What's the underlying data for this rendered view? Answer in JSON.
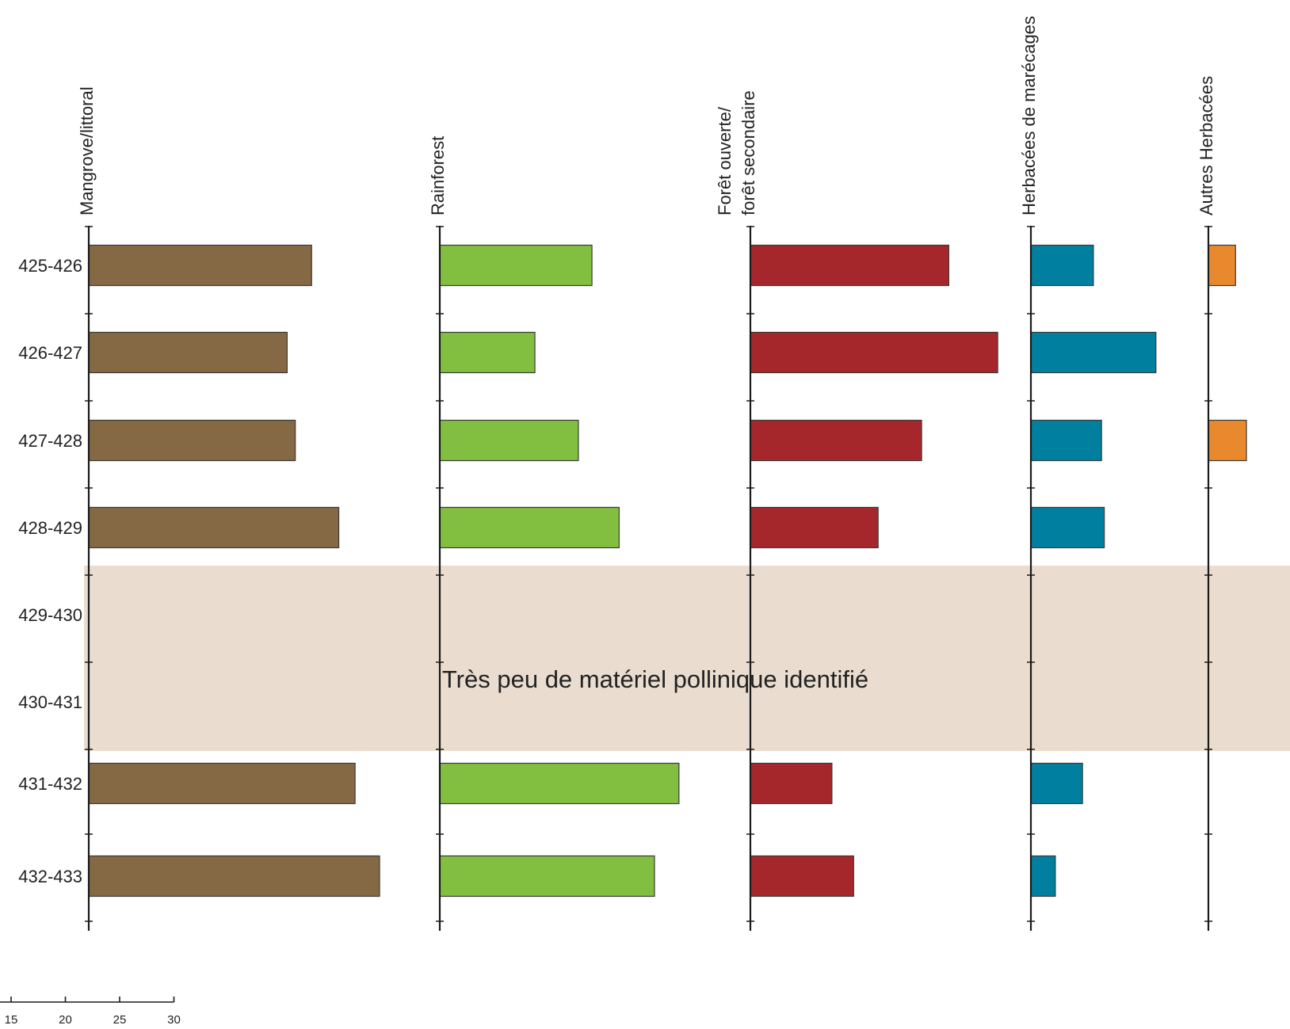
{
  "chart_data": {
    "type": "bar",
    "orientation": "horizontal",
    "categories": [
      "425-426",
      "426-427",
      "427-428",
      "428-429",
      "429-430",
      "430-431",
      "431-432",
      "432-433"
    ],
    "series": [
      {
        "name": "Mangrove/littoral",
        "color": "#856944",
        "values": [
          41,
          36.5,
          38,
          46,
          null,
          null,
          49,
          53.5
        ]
      },
      {
        "name": "Rainforest",
        "color": "#82be40",
        "values": [
          28,
          17.5,
          25.5,
          33,
          null,
          null,
          44,
          39.5
        ]
      },
      {
        "name": "Forêt ouverte/ forêt secondaire",
        "title_lines": [
          "Forêt ouverte/",
          "forêt secondaire"
        ],
        "color": "#a6272b",
        "values": [
          36.5,
          45.5,
          31.5,
          23.5,
          null,
          null,
          15,
          19
        ]
      },
      {
        "name": "Herbacées de marécages",
        "color": "#00809e",
        "values": [
          11.5,
          23,
          13,
          13.5,
          null,
          null,
          9.5,
          4.5
        ]
      },
      {
        "name": "Autres Herbacées",
        "color": "#e8892e",
        "values": [
          5,
          null,
          7,
          null,
          null,
          null,
          null,
          null
        ]
      }
    ],
    "scale": {
      "ticks": [
        "15",
        "20",
        "25",
        "30"
      ],
      "tick_values": [
        15,
        20,
        25,
        30
      ]
    },
    "annotation": {
      "text": "Très peu de matériel pollinique identifié",
      "rows": [
        "429-430",
        "430-431"
      ],
      "color": "#eaddd0"
    }
  }
}
